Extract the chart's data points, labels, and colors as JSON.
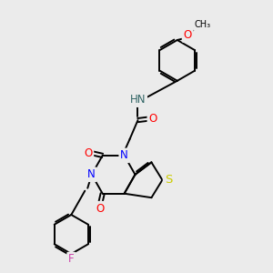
{
  "background_color": "#ebebeb",
  "bond_color": "#000000",
  "atom_colors": {
    "N": "#0000ff",
    "O": "#ff0000",
    "S": "#cccc00",
    "F": "#cc44aa",
    "H": "#336666",
    "C": "#000000"
  },
  "font_size": 8.5,
  "fig_size": [
    3.0,
    3.0
  ],
  "dpi": 100
}
